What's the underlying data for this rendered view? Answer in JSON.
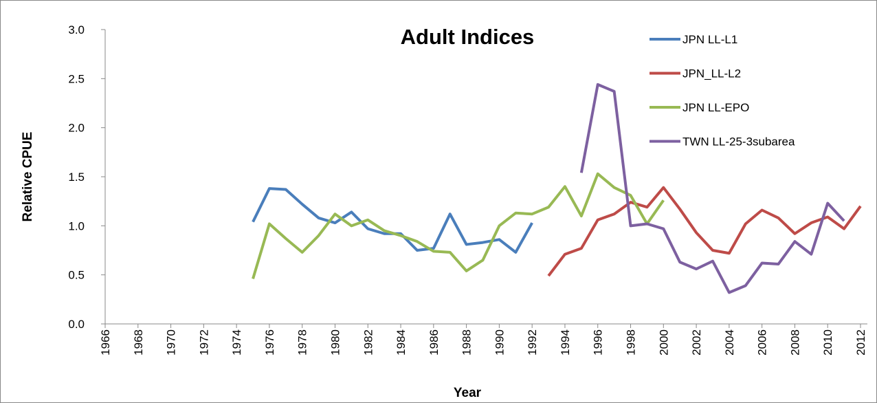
{
  "chart_data": {
    "type": "line",
    "title": "Adult Indices",
    "x_label": "Year",
    "y_label": "Relative CPUE",
    "x": [
      1966,
      1967,
      1968,
      1969,
      1970,
      1971,
      1972,
      1973,
      1974,
      1975,
      1976,
      1977,
      1978,
      1979,
      1980,
      1981,
      1982,
      1983,
      1984,
      1985,
      1986,
      1987,
      1988,
      1989,
      1990,
      1991,
      1992,
      1993,
      1994,
      1995,
      1996,
      1997,
      1998,
      1999,
      2000,
      2001,
      2002,
      2003,
      2004,
      2005,
      2006,
      2007,
      2008,
      2009,
      2010,
      2011,
      2012
    ],
    "series": [
      {
        "name": "JPN LL-L1",
        "color": "#4a7ebb",
        "values": [
          null,
          null,
          null,
          null,
          null,
          null,
          null,
          null,
          null,
          1.04,
          1.38,
          1.37,
          1.22,
          1.08,
          1.03,
          1.14,
          0.97,
          0.92,
          0.92,
          0.75,
          0.77,
          1.12,
          0.81,
          0.83,
          0.86,
          0.73,
          1.03,
          null,
          null,
          null,
          null,
          null,
          null,
          null,
          null,
          null,
          null,
          null,
          null,
          null,
          null,
          null,
          null,
          null,
          null,
          null,
          null
        ]
      },
      {
        "name": "JPN_LL-L2",
        "color": "#be4b48",
        "values": [
          null,
          null,
          null,
          null,
          null,
          null,
          null,
          null,
          null,
          null,
          null,
          null,
          null,
          null,
          null,
          null,
          null,
          null,
          null,
          null,
          null,
          null,
          null,
          null,
          null,
          null,
          null,
          0.49,
          0.71,
          0.77,
          1.06,
          1.12,
          1.24,
          1.19,
          1.39,
          1.17,
          0.93,
          0.75,
          0.72,
          1.02,
          1.16,
          1.08,
          0.92,
          1.03,
          1.09,
          0.97,
          1.2
        ]
      },
      {
        "name": "JPN LL-EPO",
        "color": "#98b954",
        "values": [
          null,
          null,
          null,
          null,
          null,
          null,
          null,
          null,
          null,
          0.46,
          1.02,
          0.87,
          0.73,
          0.9,
          1.12,
          1.0,
          1.06,
          0.95,
          0.9,
          0.84,
          0.74,
          0.73,
          0.54,
          0.65,
          1.0,
          1.13,
          1.12,
          1.19,
          1.4,
          1.1,
          1.53,
          1.39,
          1.31,
          1.02,
          1.26,
          null,
          null,
          null,
          null,
          null,
          null,
          null,
          null,
          null,
          null,
          null,
          null
        ]
      },
      {
        "name": "TWN LL-25-3subarea",
        "color": "#7d60a0",
        "values": [
          null,
          null,
          null,
          null,
          null,
          null,
          null,
          null,
          null,
          null,
          null,
          null,
          null,
          null,
          null,
          null,
          null,
          null,
          null,
          null,
          null,
          null,
          null,
          null,
          null,
          null,
          null,
          null,
          null,
          1.54,
          2.44,
          2.37,
          1.0,
          1.02,
          0.97,
          0.63,
          0.56,
          0.64,
          0.32,
          0.39,
          0.62,
          0.61,
          0.84,
          0.71,
          1.23,
          1.05,
          null
        ]
      }
    ],
    "xlim": [
      1966,
      2012
    ],
    "xticks": [
      1966,
      1968,
      1970,
      1972,
      1974,
      1976,
      1978,
      1980,
      1982,
      1984,
      1986,
      1988,
      1990,
      1992,
      1994,
      1996,
      1998,
      2000,
      2002,
      2004,
      2006,
      2008,
      2010,
      2012
    ],
    "ylim": [
      0,
      3
    ],
    "yticks": [
      {
        "value": 0,
        "label": "0.0"
      },
      {
        "value": 0.5,
        "label": "0.5"
      },
      {
        "value": 1,
        "label": "1.0"
      },
      {
        "value": 1.5,
        "label": "1.5"
      },
      {
        "value": 2,
        "label": "2.0"
      },
      {
        "value": 2.5,
        "label": "2.5"
      },
      {
        "value": 3,
        "label": "3.0"
      }
    ],
    "legend": "upper right"
  }
}
